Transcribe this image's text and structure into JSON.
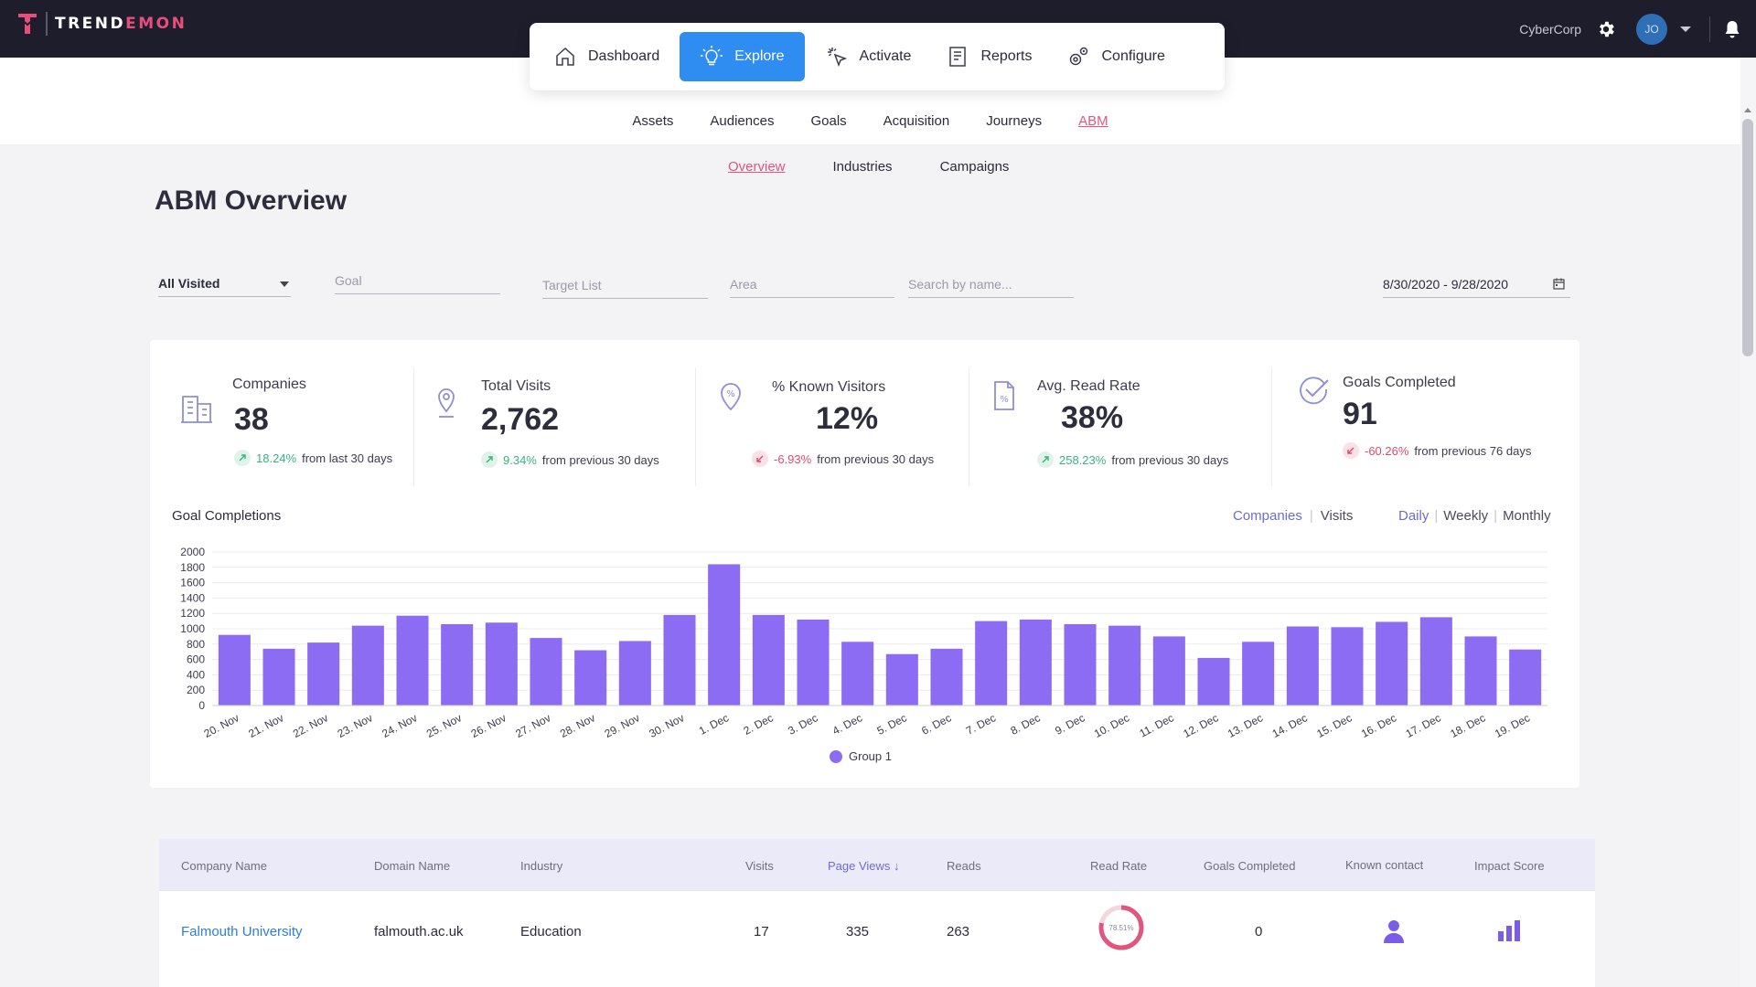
{
  "app": {
    "logo_text_main": "TREND",
    "logo_text_accent": "EMON",
    "org_name": "CyberCorp",
    "avatar_initials": "JO"
  },
  "main_nav": [
    {
      "label": "Dashboard",
      "icon": "home-icon",
      "active": false
    },
    {
      "label": "Explore",
      "icon": "lightbulb-icon",
      "active": true
    },
    {
      "label": "Activate",
      "icon": "cursor-click-icon",
      "active": false
    },
    {
      "label": "Reports",
      "icon": "report-icon",
      "active": false
    },
    {
      "label": "Configure",
      "icon": "gears-icon",
      "active": false
    }
  ],
  "sub_nav": [
    "Assets",
    "Audiences",
    "Goals",
    "Acquisition",
    "Journeys",
    "ABM"
  ],
  "sub_nav_active": "ABM",
  "abm_tabs": [
    "Overview",
    "Industries",
    "Campaigns"
  ],
  "abm_tab_active": "Overview",
  "page_title": "ABM Overview",
  "filters": {
    "visited": "All Visited",
    "goal_placeholder": "Goal",
    "target_list_placeholder": "Target List",
    "area_placeholder": "Area",
    "search_placeholder": "Search by name...",
    "date_range": "8/30/2020 - 9/28/2020"
  },
  "stats": [
    {
      "label": "Companies",
      "value": "38",
      "change": "18.24%",
      "direction": "up",
      "period": "from last 30 days",
      "icon": "building-icon"
    },
    {
      "label": "Total Visits",
      "value": "2,762",
      "change": "9.34%",
      "direction": "up",
      "period": "from previous 30 days",
      "icon": "location-pin-icon"
    },
    {
      "label": "% Known Visitors",
      "value": "12%",
      "change": "-6.93%",
      "direction": "down",
      "period": "from previous 30 days",
      "icon": "percent-pin-icon"
    },
    {
      "label": "Avg. Read Rate",
      "value": "38%",
      "change": "258.23%",
      "direction": "up",
      "period": "from previous 30 days",
      "icon": "document-percent-icon"
    },
    {
      "label": "Goals Completed",
      "value": "91",
      "change": "-60.26%",
      "direction": "down",
      "period": "from previous 76 days",
      "icon": "check-icon"
    }
  ],
  "chart_section": {
    "title": "Goal Completions",
    "metric_toggle": [
      "Companies",
      "Visits"
    ],
    "metric_active": "Companies",
    "period_toggle": [
      "Daily",
      "Weekly",
      "Monthly"
    ],
    "period_active": "Daily"
  },
  "chart_data": {
    "type": "bar",
    "title": "Goal Completions",
    "categories": [
      "20. Nov",
      "21. Nov",
      "22. Nov",
      "23. Nov",
      "24. Nov",
      "25. Nov",
      "26. Nov",
      "27. Nov",
      "28. Nov",
      "29. Nov",
      "30. Nov",
      "1. Dec",
      "2. Dec",
      "3. Dec",
      "4. Dec",
      "5. Dec",
      "6. Dec",
      "7. Dec",
      "8. Dec",
      "9. Dec",
      "10. Dec",
      "11. Dec",
      "12. Dec",
      "13. Dec",
      "14. Dec",
      "15. Dec",
      "16. Dec",
      "17. Dec",
      "18. Dec",
      "19. Dec"
    ],
    "series": [
      {
        "name": "Group 1",
        "values": [
          920,
          740,
          820,
          1040,
          1170,
          1060,
          1080,
          880,
          720,
          840,
          1180,
          1840,
          1180,
          1120,
          830,
          670,
          740,
          1100,
          1120,
          1060,
          1040,
          900,
          620,
          830,
          1030,
          1020,
          1090,
          1150,
          900,
          730
        ]
      }
    ],
    "ylim": [
      0,
      2000
    ],
    "yticks": [
      0,
      200,
      400,
      600,
      800,
      1000,
      1200,
      1400,
      1600,
      1800,
      2000
    ],
    "grid": true,
    "legend_position": "bottom-center",
    "color": "#8b6cf2"
  },
  "table": {
    "headers": [
      "Company Name",
      "Domain Name",
      "Industry",
      "Visits",
      "Page Views",
      "Reads",
      "Read Rate",
      "Goals Completed",
      "Known contact",
      "Impact Score"
    ],
    "sorted_by": "Page Views",
    "rows": [
      {
        "company": "Falmouth University",
        "domain": "falmouth.ac.uk",
        "industry": "Education",
        "visits": "17",
        "page_views": "335",
        "reads": "263",
        "read_rate_label": "78.51%",
        "read_rate": 78.51,
        "goals": "0"
      }
    ]
  }
}
